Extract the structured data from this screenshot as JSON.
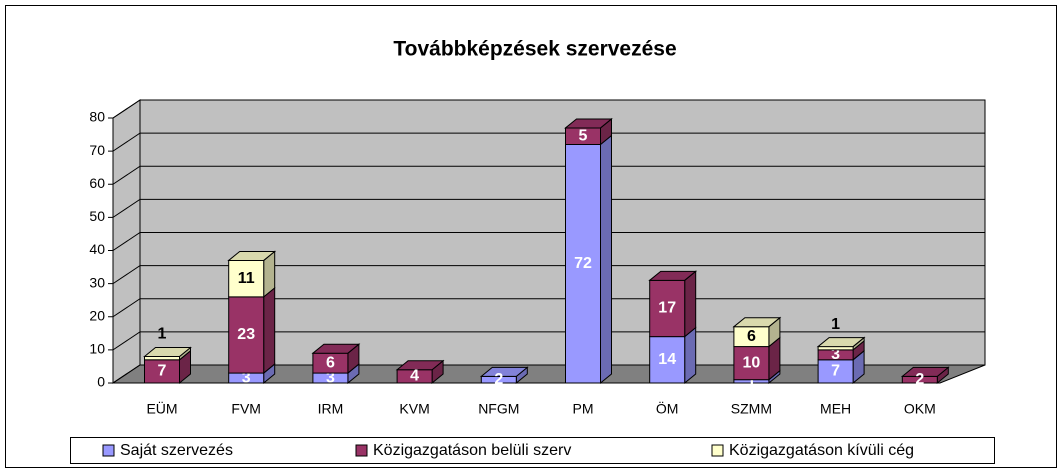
{
  "chart_data": {
    "type": "bar3d_stacked",
    "title": "Továbbképzések szervezése",
    "categories": [
      "EÜM",
      "FVM",
      "IRM",
      "KVM",
      "NFGM",
      "PM",
      "ÖM",
      "SZMM",
      "MEH",
      "OKM"
    ],
    "series": [
      {
        "name": "Saját szervezés",
        "color": "#9999ff",
        "values": [
          null,
          3,
          3,
          null,
          2,
          72,
          14,
          1,
          7,
          null
        ]
      },
      {
        "name": "Közigazgatáson belüli szerv",
        "color": "#993366",
        "values": [
          7,
          23,
          6,
          4,
          null,
          5,
          17,
          10,
          3,
          2
        ]
      },
      {
        "name": "Közigazgatáson kívüli cég",
        "color": "#ffffcc",
        "values": [
          1,
          11,
          null,
          null,
          null,
          null,
          null,
          6,
          1,
          null
        ]
      }
    ],
    "ylim": [
      0,
      80
    ],
    "yticks": [
      0,
      10,
      20,
      30,
      40,
      50,
      60,
      70,
      80
    ],
    "grid": true,
    "legend": "bottom"
  }
}
